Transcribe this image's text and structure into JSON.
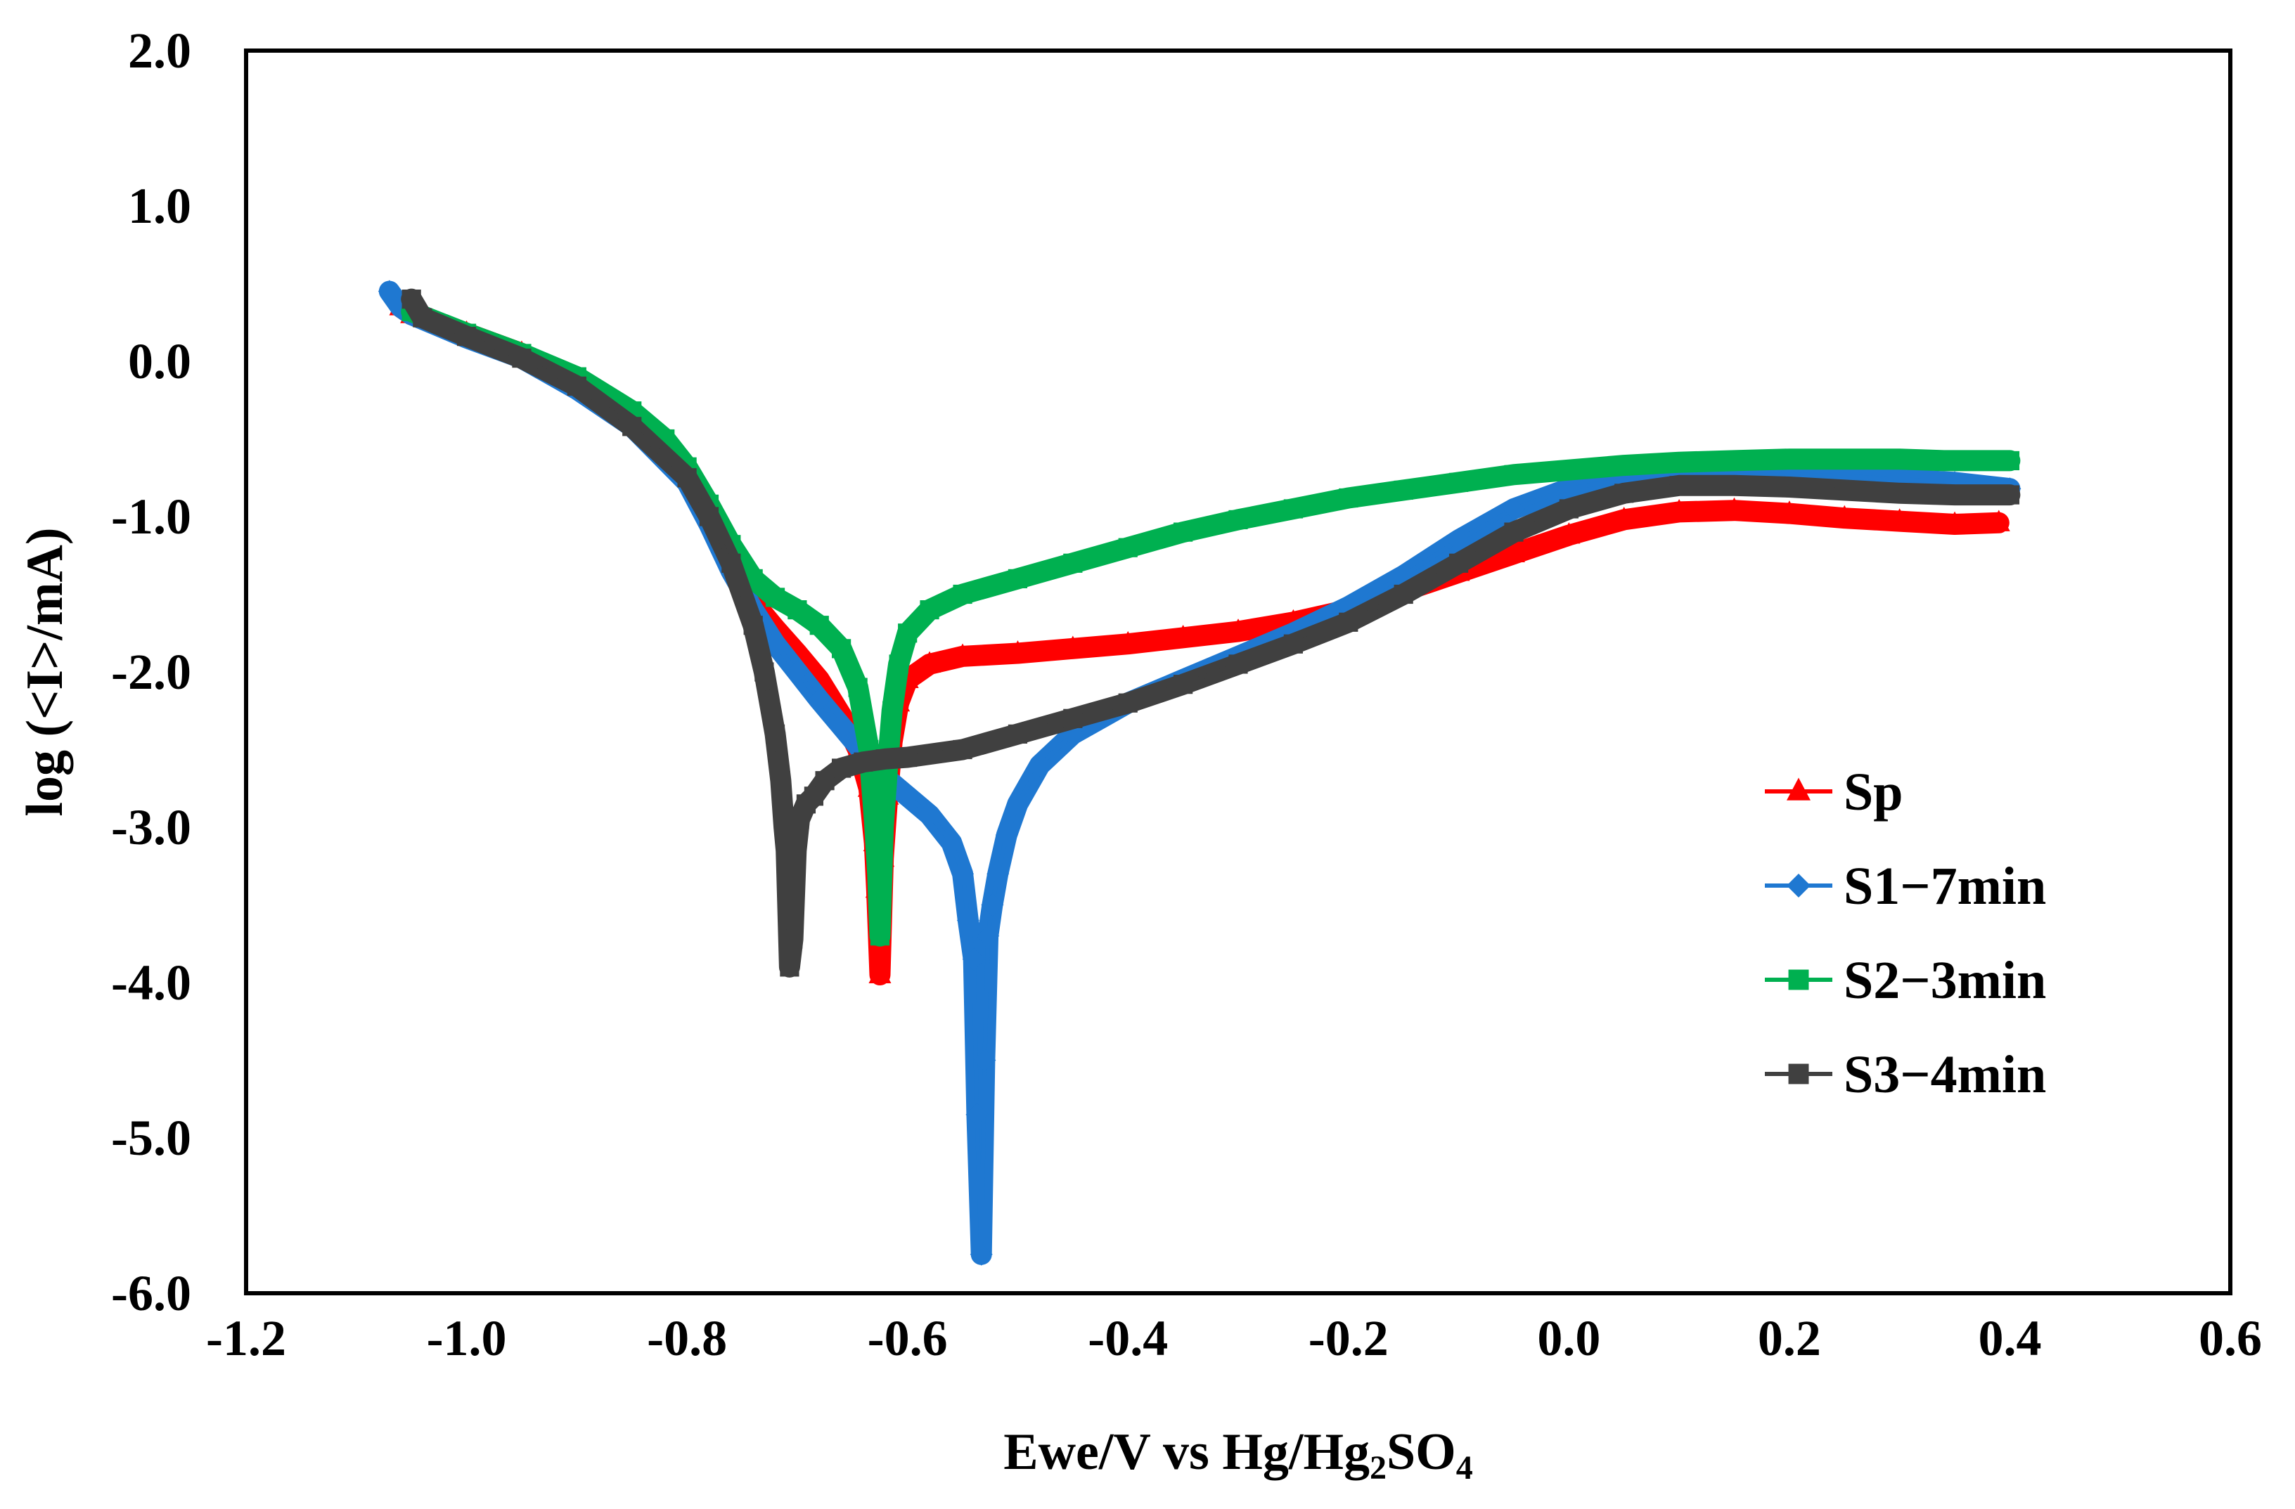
{
  "chart_data": {
    "type": "line",
    "title": "",
    "xlabel_main": "Ewe/V vs Hg/Hg",
    "xlabel_sub1": "2",
    "xlabel_mid": "SO",
    "xlabel_sub2": "4",
    "ylabel": "log (<I>/mA)",
    "xlim": [
      -1.2,
      0.6
    ],
    "ylim": [
      -6.0,
      2.0
    ],
    "x_ticks": [
      -1.2,
      -1.0,
      -0.8,
      -0.6,
      -0.4,
      -0.2,
      0.0,
      0.2,
      0.4,
      0.6
    ],
    "x_tick_labels": [
      "-1.2",
      "-1.0",
      "-0.8",
      "-0.6",
      "-0.4",
      "-0.2",
      "0.0",
      "0.2",
      "0.4",
      "0.6"
    ],
    "y_ticks": [
      2.0,
      1.0,
      0.0,
      -1.0,
      -2.0,
      -3.0,
      -4.0,
      -5.0,
      -6.0
    ],
    "y_tick_labels": [
      "2.0",
      "1.0",
      "0.0",
      "-1.0",
      "-2.0",
      "-3.0",
      "-4.0",
      "-5.0",
      "-6.0"
    ],
    "grid": false,
    "legend_position": "right-middle",
    "series": [
      {
        "name": "Sp",
        "color": "#ff0000",
        "marker": "triangle",
        "points": [
          [
            -1.06,
            0.35
          ],
          [
            -1.05,
            0.3
          ],
          [
            -1.0,
            0.18
          ],
          [
            -0.95,
            0.05
          ],
          [
            -0.9,
            -0.12
          ],
          [
            -0.85,
            -0.35
          ],
          [
            -0.8,
            -0.7
          ],
          [
            -0.78,
            -0.95
          ],
          [
            -0.76,
            -1.25
          ],
          [
            -0.74,
            -1.55
          ],
          [
            -0.72,
            -1.72
          ],
          [
            -0.7,
            -1.88
          ],
          [
            -0.68,
            -2.05
          ],
          [
            -0.66,
            -2.28
          ],
          [
            -0.645,
            -2.5
          ],
          [
            -0.635,
            -2.75
          ],
          [
            -0.63,
            -3.1
          ],
          [
            -0.628,
            -3.4
          ],
          [
            -0.625,
            -3.95
          ],
          [
            -0.622,
            -3.2
          ],
          [
            -0.618,
            -2.8
          ],
          [
            -0.614,
            -2.45
          ],
          [
            -0.608,
            -2.2
          ],
          [
            -0.6,
            -2.05
          ],
          [
            -0.58,
            -1.95
          ],
          [
            -0.55,
            -1.9
          ],
          [
            -0.5,
            -1.88
          ],
          [
            -0.45,
            -1.85
          ],
          [
            -0.4,
            -1.82
          ],
          [
            -0.35,
            -1.78
          ],
          [
            -0.3,
            -1.74
          ],
          [
            -0.25,
            -1.68
          ],
          [
            -0.2,
            -1.6
          ],
          [
            -0.15,
            -1.48
          ],
          [
            -0.1,
            -1.36
          ],
          [
            -0.05,
            -1.24
          ],
          [
            0.0,
            -1.12
          ],
          [
            0.05,
            -1.02
          ],
          [
            0.1,
            -0.97
          ],
          [
            0.15,
            -0.96
          ],
          [
            0.2,
            -0.98
          ],
          [
            0.25,
            -1.01
          ],
          [
            0.3,
            -1.03
          ],
          [
            0.35,
            -1.05
          ],
          [
            0.39,
            -1.04
          ]
        ]
      },
      {
        "name": "S1−7min",
        "color": "#1f78d1",
        "marker": "diamond",
        "points": [
          [
            -1.07,
            0.45
          ],
          [
            -1.06,
            0.35
          ],
          [
            -1.05,
            0.3
          ],
          [
            -1.0,
            0.15
          ],
          [
            -0.95,
            0.02
          ],
          [
            -0.9,
            -0.18
          ],
          [
            -0.85,
            -0.42
          ],
          [
            -0.8,
            -0.78
          ],
          [
            -0.78,
            -1.05
          ],
          [
            -0.76,
            -1.35
          ],
          [
            -0.74,
            -1.6
          ],
          [
            -0.72,
            -1.82
          ],
          [
            -0.7,
            -2.0
          ],
          [
            -0.68,
            -2.18
          ],
          [
            -0.66,
            -2.35
          ],
          [
            -0.64,
            -2.52
          ],
          [
            -0.62,
            -2.68
          ],
          [
            -0.6,
            -2.8
          ],
          [
            -0.58,
            -2.92
          ],
          [
            -0.56,
            -3.1
          ],
          [
            -0.55,
            -3.3
          ],
          [
            -0.545,
            -3.6
          ],
          [
            -0.54,
            -3.85
          ],
          [
            -0.537,
            -4.85
          ],
          [
            -0.533,
            -5.75
          ],
          [
            -0.53,
            -4.5
          ],
          [
            -0.527,
            -3.7
          ],
          [
            -0.523,
            -3.5
          ],
          [
            -0.518,
            -3.3
          ],
          [
            -0.51,
            -3.05
          ],
          [
            -0.5,
            -2.85
          ],
          [
            -0.48,
            -2.6
          ],
          [
            -0.45,
            -2.4
          ],
          [
            -0.42,
            -2.28
          ],
          [
            -0.4,
            -2.2
          ],
          [
            -0.35,
            -2.05
          ],
          [
            -0.3,
            -1.9
          ],
          [
            -0.25,
            -1.75
          ],
          [
            -0.2,
            -1.58
          ],
          [
            -0.15,
            -1.38
          ],
          [
            -0.1,
            -1.15
          ],
          [
            -0.05,
            -0.95
          ],
          [
            0.0,
            -0.82
          ],
          [
            0.05,
            -0.76
          ],
          [
            0.1,
            -0.74
          ],
          [
            0.15,
            -0.73
          ],
          [
            0.2,
            -0.73
          ],
          [
            0.25,
            -0.74
          ],
          [
            0.3,
            -0.76
          ],
          [
            0.35,
            -0.78
          ],
          [
            0.4,
            -0.82
          ]
        ]
      },
      {
        "name": "S2−3min",
        "color": "#00b050",
        "marker": "square",
        "points": [
          [
            -1.05,
            0.32
          ],
          [
            -1.0,
            0.18
          ],
          [
            -0.95,
            0.05
          ],
          [
            -0.9,
            -0.1
          ],
          [
            -0.85,
            -0.32
          ],
          [
            -0.82,
            -0.5
          ],
          [
            -0.8,
            -0.68
          ],
          [
            -0.78,
            -0.92
          ],
          [
            -0.76,
            -1.18
          ],
          [
            -0.74,
            -1.4
          ],
          [
            -0.72,
            -1.52
          ],
          [
            -0.7,
            -1.6
          ],
          [
            -0.68,
            -1.7
          ],
          [
            -0.66,
            -1.85
          ],
          [
            -0.645,
            -2.1
          ],
          [
            -0.635,
            -2.5
          ],
          [
            -0.63,
            -2.95
          ],
          [
            -0.627,
            -3.3
          ],
          [
            -0.625,
            -3.7
          ],
          [
            -0.622,
            -3.0
          ],
          [
            -0.618,
            -2.6
          ],
          [
            -0.614,
            -2.25
          ],
          [
            -0.608,
            -1.95
          ],
          [
            -0.6,
            -1.75
          ],
          [
            -0.58,
            -1.6
          ],
          [
            -0.55,
            -1.5
          ],
          [
            -0.5,
            -1.4
          ],
          [
            -0.45,
            -1.3
          ],
          [
            -0.4,
            -1.2
          ],
          [
            -0.35,
            -1.1
          ],
          [
            -0.3,
            -1.02
          ],
          [
            -0.25,
            -0.95
          ],
          [
            -0.2,
            -0.88
          ],
          [
            -0.15,
            -0.83
          ],
          [
            -0.1,
            -0.78
          ],
          [
            -0.05,
            -0.73
          ],
          [
            0.0,
            -0.7
          ],
          [
            0.05,
            -0.67
          ],
          [
            0.1,
            -0.65
          ],
          [
            0.15,
            -0.64
          ],
          [
            0.2,
            -0.63
          ],
          [
            0.25,
            -0.63
          ],
          [
            0.3,
            -0.63
          ],
          [
            0.34,
            -0.64
          ],
          [
            0.4,
            -0.64
          ]
        ]
      },
      {
        "name": "S3−4min",
        "color": "#404040",
        "marker": "square",
        "points": [
          [
            -1.05,
            0.4
          ],
          [
            -1.04,
            0.28
          ],
          [
            -1.0,
            0.16
          ],
          [
            -0.95,
            0.02
          ],
          [
            -0.9,
            -0.16
          ],
          [
            -0.85,
            -0.42
          ],
          [
            -0.8,
            -0.75
          ],
          [
            -0.78,
            -1.0
          ],
          [
            -0.76,
            -1.3
          ],
          [
            -0.74,
            -1.7
          ],
          [
            -0.73,
            -2.0
          ],
          [
            -0.72,
            -2.4
          ],
          [
            -0.715,
            -2.7
          ],
          [
            -0.712,
            -3.0
          ],
          [
            -0.71,
            -3.15
          ],
          [
            -0.707,
            -3.9
          ],
          [
            -0.704,
            -3.72
          ],
          [
            -0.701,
            -3.15
          ],
          [
            -0.698,
            -2.95
          ],
          [
            -0.692,
            -2.85
          ],
          [
            -0.685,
            -2.8
          ],
          [
            -0.675,
            -2.7
          ],
          [
            -0.66,
            -2.62
          ],
          [
            -0.64,
            -2.58
          ],
          [
            -0.62,
            -2.56
          ],
          [
            -0.6,
            -2.55
          ],
          [
            -0.55,
            -2.5
          ],
          [
            -0.5,
            -2.4
          ],
          [
            -0.45,
            -2.3
          ],
          [
            -0.4,
            -2.2
          ],
          [
            -0.35,
            -2.08
          ],
          [
            -0.3,
            -1.95
          ],
          [
            -0.25,
            -1.82
          ],
          [
            -0.2,
            -1.68
          ],
          [
            -0.15,
            -1.5
          ],
          [
            -0.1,
            -1.3
          ],
          [
            -0.05,
            -1.1
          ],
          [
            0.0,
            -0.95
          ],
          [
            0.05,
            -0.85
          ],
          [
            0.1,
            -0.8
          ],
          [
            0.15,
            -0.8
          ],
          [
            0.2,
            -0.81
          ],
          [
            0.25,
            -0.83
          ],
          [
            0.3,
            -0.85
          ],
          [
            0.35,
            -0.86
          ],
          [
            0.4,
            -0.86
          ]
        ]
      }
    ]
  }
}
